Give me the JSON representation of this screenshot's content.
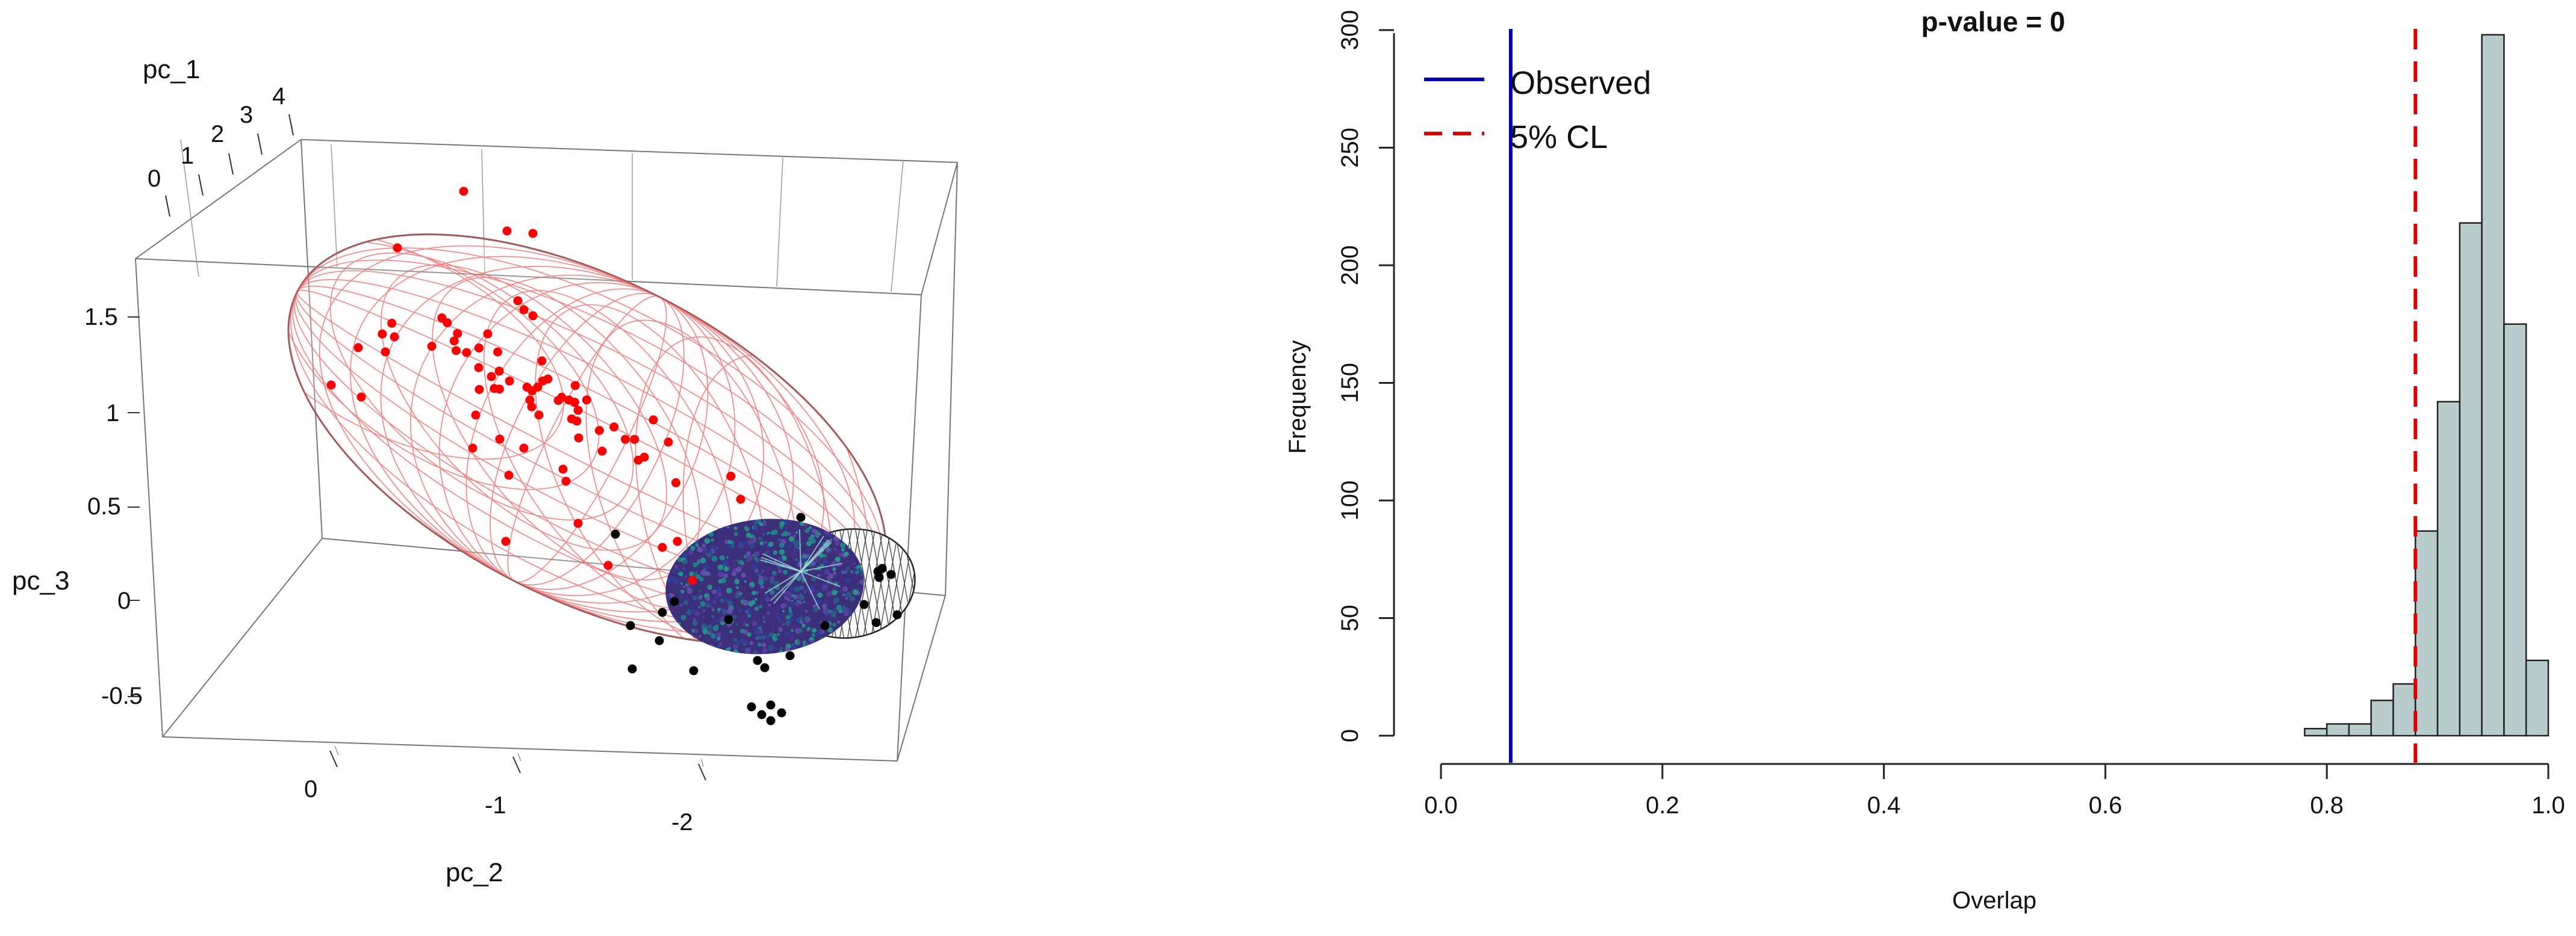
{
  "colors": {
    "observed": "#0000bb",
    "cl": "#dd0000",
    "bars": "#b9cccc",
    "pointsA": "#ff0000",
    "pointsB": "#000000",
    "ellipseA": "#ee6666",
    "ellipseB": "#222222",
    "overlap": "#3b2f7a"
  },
  "chart_data": [
    {
      "type": "scatter",
      "subtype": "3d-scatter-with-ellipsoids",
      "axes": {
        "x": {
          "label": "pc_2",
          "ticks": [
            "0",
            "-1",
            "-2"
          ]
        },
        "y": {
          "label": "pc_1",
          "ticks": [
            "0",
            "1",
            "2",
            "3",
            "4"
          ]
        },
        "z": {
          "label": "pc_3",
          "ticks": [
            "1.5",
            "1",
            "0.5",
            "0",
            "-0.5"
          ]
        }
      },
      "groups": [
        {
          "color": "red",
          "points": 75
        },
        {
          "color": "black",
          "points": 25
        }
      ]
    },
    {
      "type": "bar",
      "subtype": "histogram",
      "title": "p-value = 0",
      "xlabel": "Overlap",
      "ylabel": "Frequency",
      "xlim": [
        0,
        1
      ],
      "ylim": [
        0,
        300
      ],
      "xticks": [
        "0.0",
        "0.2",
        "0.4",
        "0.6",
        "0.8",
        "1.0"
      ],
      "yticks": [
        "0",
        "50",
        "100",
        "150",
        "200",
        "250",
        "300"
      ],
      "bin_width": 0.02,
      "bins": [
        {
          "start": 0.78,
          "count": 3
        },
        {
          "start": 0.8,
          "count": 5
        },
        {
          "start": 0.82,
          "count": 5
        },
        {
          "start": 0.84,
          "count": 15
        },
        {
          "start": 0.86,
          "count": 22
        },
        {
          "start": 0.88,
          "count": 87
        },
        {
          "start": 0.9,
          "count": 142
        },
        {
          "start": 0.92,
          "count": 218
        },
        {
          "start": 0.94,
          "count": 298
        },
        {
          "start": 0.96,
          "count": 175
        },
        {
          "start": 0.98,
          "count": 32
        }
      ],
      "observed": 0.063,
      "cl_5pct": 0.88,
      "legend": [
        {
          "label": "Observed",
          "style": "solid",
          "color": "#0000bb"
        },
        {
          "label": "5% CL",
          "style": "dashed",
          "color": "#dd0000"
        }
      ]
    }
  ]
}
